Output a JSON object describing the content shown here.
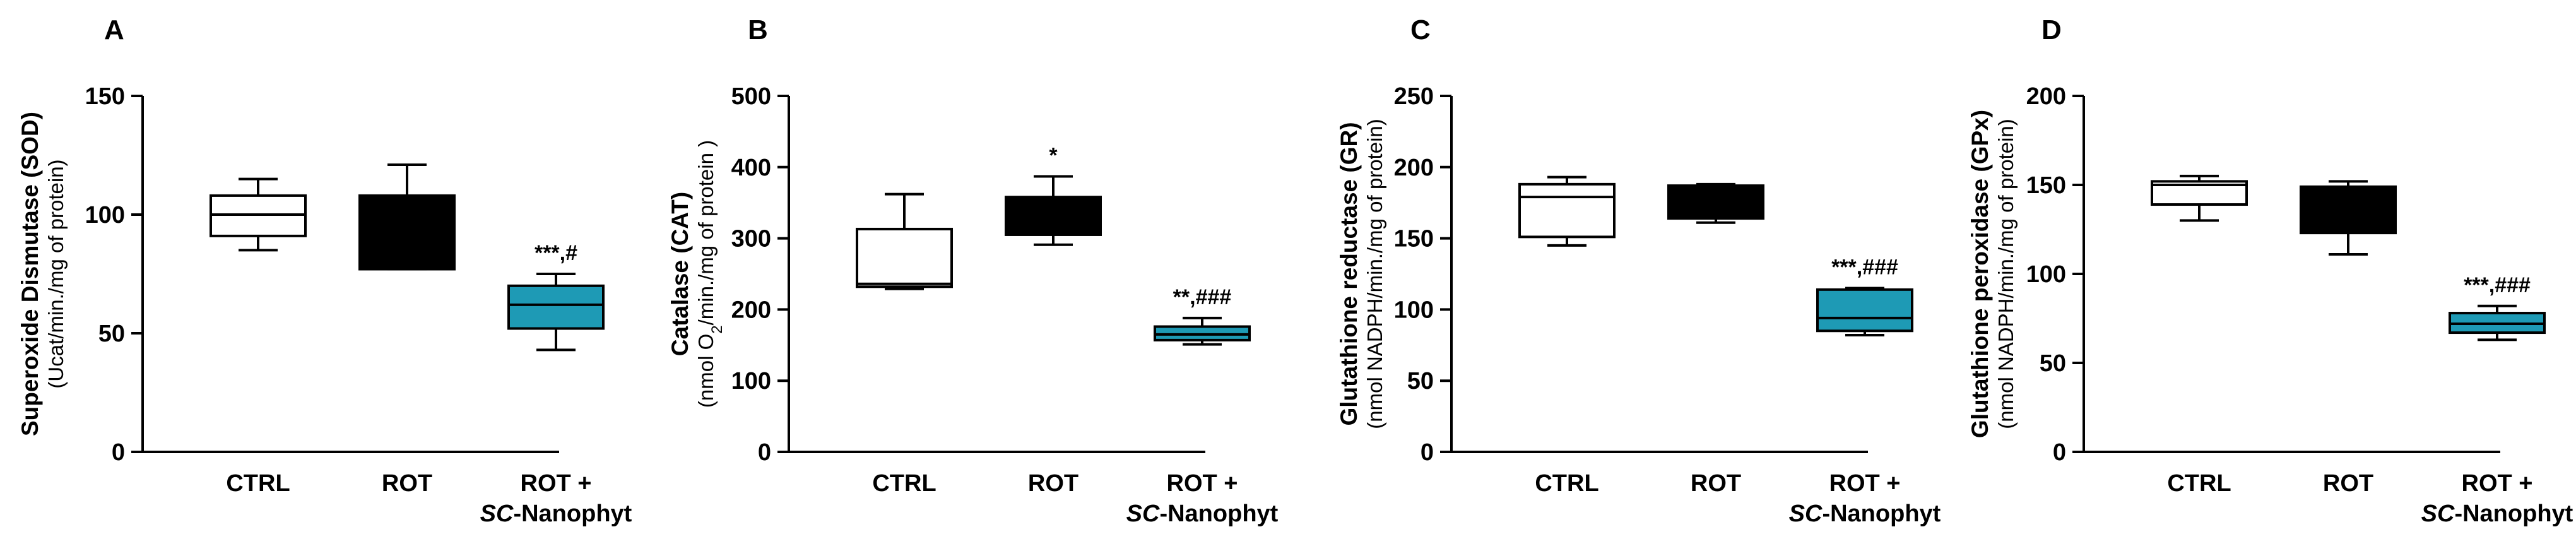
{
  "chart_data": [
    {
      "panel": "A",
      "type": "box",
      "ylabel": "Superoxide Dismutase (SOD)",
      "ylabel_unit": "(Ucat/min./mg of protein)",
      "ylim": [
        0,
        150
      ],
      "yticks": [
        0,
        50,
        100,
        150
      ],
      "categories": [
        "CTRL",
        "ROT",
        "ROT +"
      ],
      "category_sub": [
        "",
        "",
        "SC-Nanophyt"
      ],
      "boxes": [
        {
          "min": 85,
          "q1": 91,
          "median": 100,
          "q3": 108,
          "max": 115,
          "fill": "#ffffff"
        },
        {
          "min": 77,
          "q1": 77,
          "median": 78,
          "q3": 108,
          "max": 121,
          "fill": "#000000"
        },
        {
          "min": 43,
          "q1": 52,
          "median": 62,
          "q3": 70,
          "max": 75,
          "fill": "#1e9ab5"
        }
      ],
      "annotations": [
        "",
        "",
        "***,#"
      ]
    },
    {
      "panel": "B",
      "type": "box",
      "ylabel": "Catalase (CAT)",
      "ylabel_unit": "(nmol O2/min./mg of protein )",
      "ylim": [
        0,
        500
      ],
      "yticks": [
        0,
        100,
        200,
        300,
        400,
        500
      ],
      "categories": [
        "CTRL",
        "ROT",
        "ROT +"
      ],
      "category_sub": [
        "",
        "",
        "SC-Nanophyt"
      ],
      "boxes": [
        {
          "min": 229,
          "q1": 232,
          "median": 236,
          "q3": 313,
          "max": 362,
          "fill": "#ffffff"
        },
        {
          "min": 291,
          "q1": 305,
          "median": 307,
          "q3": 358,
          "max": 387,
          "fill": "#000000"
        },
        {
          "min": 151,
          "q1": 157,
          "median": 165,
          "q3": 176,
          "max": 188,
          "fill": "#1e9ab5"
        }
      ],
      "annotations": [
        "",
        "*",
        "**,###"
      ]
    },
    {
      "panel": "C",
      "type": "box",
      "ylabel": "Glutathione reductase (GR)",
      "ylabel_unit": "(nmol NADPH/min./mg of protein)",
      "ylim": [
        0,
        250
      ],
      "yticks": [
        0,
        50,
        100,
        150,
        200,
        250
      ],
      "categories": [
        "CTRL",
        "ROT",
        "ROT +"
      ],
      "category_sub": [
        "",
        "",
        "SC-Nanophyt"
      ],
      "boxes": [
        {
          "min": 145,
          "q1": 151,
          "median": 179,
          "q3": 188,
          "max": 193,
          "fill": "#ffffff"
        },
        {
          "min": 161,
          "q1": 164,
          "median": 183,
          "q3": 187,
          "max": 188,
          "fill": "#000000"
        },
        {
          "min": 82,
          "q1": 85,
          "median": 94,
          "q3": 114,
          "max": 115,
          "fill": "#1e9ab5"
        }
      ],
      "annotations": [
        "",
        "",
        "***,###"
      ]
    },
    {
      "panel": "D",
      "type": "box",
      "ylabel": "Glutathione peroxidase (GPx)",
      "ylabel_unit": "(nmol NADPH/min./mg of protein)",
      "ylim": [
        0,
        200
      ],
      "yticks": [
        0,
        50,
        100,
        150,
        200
      ],
      "categories": [
        "CTRL",
        "ROT",
        "ROT +"
      ],
      "category_sub": [
        "",
        "",
        "SC-Nanophyt"
      ],
      "boxes": [
        {
          "min": 130,
          "q1": 139,
          "median": 150,
          "q3": 152,
          "max": 155,
          "fill": "#ffffff"
        },
        {
          "min": 111,
          "q1": 123,
          "median": 124,
          "q3": 149,
          "max": 152,
          "fill": "#000000"
        },
        {
          "min": 63,
          "q1": 67,
          "median": 72,
          "q3": 78,
          "max": 82,
          "fill": "#1e9ab5"
        }
      ],
      "annotations": [
        "",
        "",
        "***,###"
      ]
    }
  ]
}
